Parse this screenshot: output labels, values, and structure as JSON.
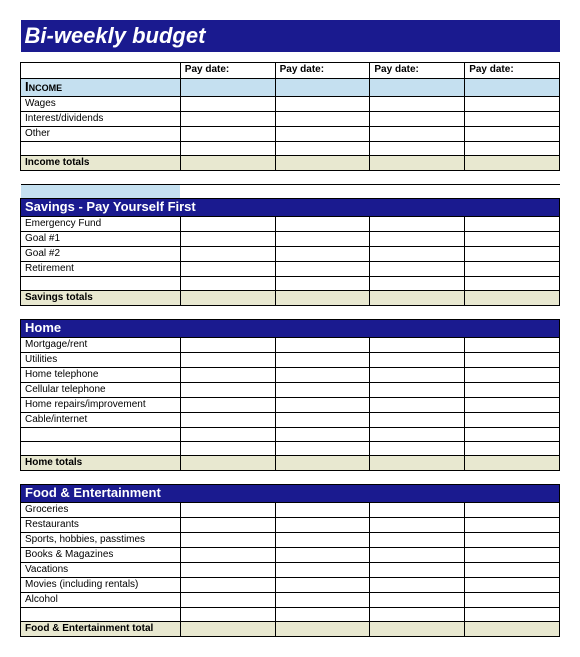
{
  "title": "Bi-weekly  budget",
  "columns": [
    "Pay date:",
    "Pay date:",
    "Pay date:",
    "Pay date:"
  ],
  "colors": {
    "section_blue": "#1a1a8f",
    "section_light": "#c5e0f0",
    "totals_bg": "#e8e8d0",
    "border": "#000000",
    "text_white": "#ffffff"
  },
  "sections": [
    {
      "header": "Income",
      "style": "light",
      "rows": [
        "Wages",
        "Interest/dividends",
        "Other",
        ""
      ],
      "totals": "Income totals"
    },
    {
      "header": "Savings - Pay Yourself First",
      "style": "blue",
      "rows": [
        "Emergency Fund",
        "Goal #1",
        "Goal #2",
        "Retirement",
        ""
      ],
      "totals": "Savings totals"
    },
    {
      "header": "Home",
      "style": "blue",
      "rows": [
        "Mortgage/rent",
        "Utilities",
        "Home telephone",
        "Cellular telephone",
        "Home repairs/improvement",
        "Cable/internet",
        "",
        ""
      ],
      "totals": "Home totals"
    },
    {
      "header": "Food & Entertainment",
      "style": "blue",
      "rows": [
        "Groceries",
        "Restaurants",
        "Sports, hobbies, passtimes",
        "Books & Magazines",
        "Vacations",
        "Movies (including rentals)",
        "Alcohol",
        ""
      ],
      "totals": "Food & Entertainment total"
    }
  ]
}
